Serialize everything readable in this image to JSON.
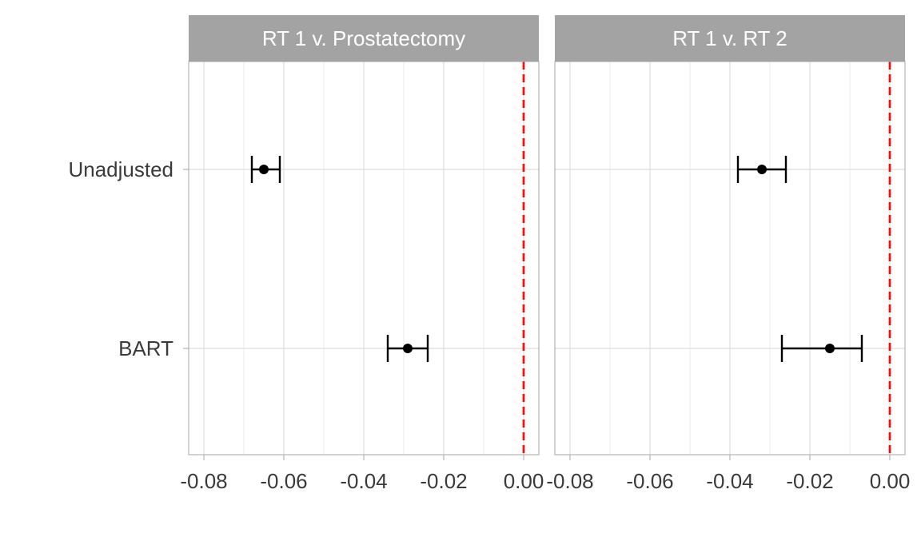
{
  "chart_data": {
    "type": "scatter",
    "subtype": "forest-plot-faceted",
    "categories": [
      "Unadjusted",
      "BART"
    ],
    "x_ticks": [
      -0.08,
      -0.06,
      -0.04,
      -0.02,
      0.0
    ],
    "x_tick_labels": [
      "-0.08",
      "-0.06",
      "-0.04",
      "-0.02",
      "0.00"
    ],
    "xlim": [
      -0.0838,
      0.0038
    ],
    "reference_line": {
      "x": 0.0,
      "style": "dashed",
      "color": "#ee1111"
    },
    "grid": true,
    "colors": {
      "strip_background": "#a3a3a3",
      "strip_text": "#ffffff",
      "panel_border": "#b3b3b3",
      "grid": "#dedede",
      "marks": "#000000",
      "tick_text": "#3a3a3a"
    },
    "panels": [
      {
        "title": "RT 1 v. Prostatectomy",
        "points": [
          {
            "category": "Unadjusted",
            "estimate": -0.065,
            "lower": -0.068,
            "upper": -0.061
          },
          {
            "category": "BART",
            "estimate": -0.029,
            "lower": -0.034,
            "upper": -0.024
          }
        ]
      },
      {
        "title": "RT 1 v. RT 2",
        "points": [
          {
            "category": "Unadjusted",
            "estimate": -0.032,
            "lower": -0.038,
            "upper": -0.026
          },
          {
            "category": "BART",
            "estimate": -0.015,
            "lower": -0.027,
            "upper": -0.007
          }
        ]
      }
    ]
  }
}
